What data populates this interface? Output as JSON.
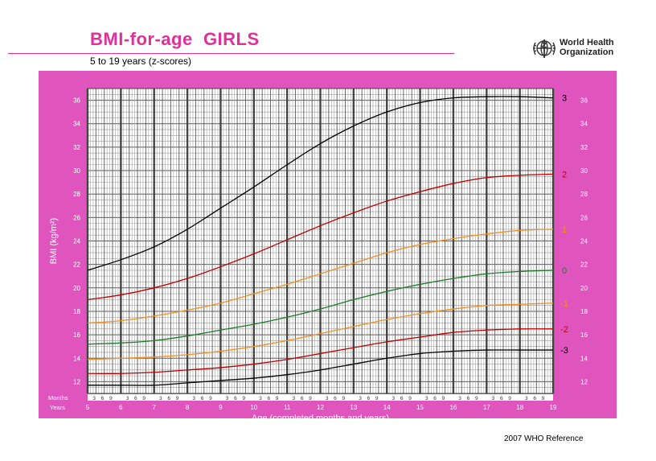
{
  "header": {
    "title": "BMI-for-age  GIRLS",
    "subtitle": "5 to 19 years (z-scores)"
  },
  "logo": {
    "name_line1": "World Health",
    "name_line2": "Organization",
    "icon": "who-emblem-icon"
  },
  "footer": {
    "reference": "2007 WHO Reference"
  },
  "colors": {
    "frame": "#e055bd",
    "title": "#e0309a",
    "sd3": "#000000",
    "sd2": "#c00000",
    "sd1": "#f39020",
    "median": "#1d7d2a"
  },
  "chart_data": {
    "type": "line",
    "title": "BMI-for-age  GIRLS",
    "subtitle": "5 to 19 years (z-scores)",
    "xlabel": "Age (completed months and years)",
    "ylabel": "BMI (kg/m²)",
    "x_row_labels": {
      "months": "Months",
      "years": "Years"
    },
    "xlim": [
      5,
      19
    ],
    "ylim": [
      11,
      37
    ],
    "x_major_ticks": [
      5,
      6,
      7,
      8,
      9,
      10,
      11,
      12,
      13,
      14,
      15,
      16,
      17,
      18,
      19
    ],
    "x_month_labels": [
      "3",
      "6",
      "9"
    ],
    "y_major_ticks": [
      12,
      14,
      16,
      18,
      20,
      22,
      24,
      26,
      28,
      30,
      32,
      34,
      36
    ],
    "grid": true,
    "x": [
      5,
      6,
      7,
      8,
      9,
      10,
      11,
      12,
      13,
      14,
      15,
      16,
      17,
      18,
      19
    ],
    "series": [
      {
        "name": "3",
        "color": "#000000",
        "values": [
          21.5,
          22.4,
          23.5,
          25.0,
          26.8,
          28.6,
          30.5,
          32.3,
          33.8,
          35.0,
          35.8,
          36.2,
          36.3,
          36.3,
          36.2
        ]
      },
      {
        "name": "2",
        "color": "#c00000",
        "values": [
          19.0,
          19.4,
          20.0,
          20.8,
          21.8,
          22.9,
          24.1,
          25.3,
          26.4,
          27.4,
          28.2,
          28.9,
          29.4,
          29.6,
          29.7
        ]
      },
      {
        "name": "1",
        "color": "#f39020",
        "values": [
          17.0,
          17.2,
          17.6,
          18.1,
          18.7,
          19.5,
          20.3,
          21.2,
          22.1,
          23.0,
          23.7,
          24.2,
          24.6,
          24.9,
          25.0
        ]
      },
      {
        "name": "0",
        "color": "#1d7d2a",
        "values": [
          15.2,
          15.3,
          15.5,
          15.9,
          16.4,
          16.9,
          17.5,
          18.2,
          19.0,
          19.7,
          20.3,
          20.8,
          21.2,
          21.4,
          21.5
        ]
      },
      {
        "name": "-1",
        "color": "#f39020",
        "values": [
          13.9,
          14.0,
          14.1,
          14.3,
          14.6,
          15.0,
          15.5,
          16.1,
          16.7,
          17.3,
          17.8,
          18.2,
          18.5,
          18.6,
          18.7
        ]
      },
      {
        "name": "-2",
        "color": "#c00000",
        "values": [
          12.7,
          12.7,
          12.8,
          13.0,
          13.2,
          13.5,
          13.9,
          14.4,
          14.9,
          15.4,
          15.8,
          16.2,
          16.4,
          16.5,
          16.5
        ]
      },
      {
        "name": "-3",
        "color": "#000000",
        "values": [
          11.7,
          11.7,
          11.7,
          11.9,
          12.1,
          12.3,
          12.6,
          13.0,
          13.5,
          14.0,
          14.4,
          14.6,
          14.7,
          14.7,
          14.7
        ]
      }
    ]
  }
}
